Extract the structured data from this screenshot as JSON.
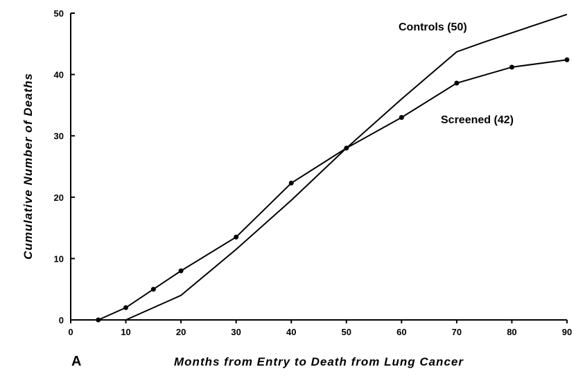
{
  "chart_data": {
    "type": "line",
    "panel_label": "A",
    "x_label": "Months from Entry to Death from Lung Cancer",
    "y_label": "Cumulative Number of Deaths",
    "xlim": [
      0,
      90
    ],
    "xticks": [
      0,
      10,
      20,
      30,
      40,
      50,
      60,
      70,
      80,
      90
    ],
    "ylim": [
      0,
      50
    ],
    "yticks": [
      0,
      10,
      20,
      30,
      40,
      50
    ],
    "series": [
      {
        "name": "Controls (50)",
        "color": "#000000",
        "markers": false,
        "x": [
          10,
          20,
          30,
          40,
          50,
          60,
          70,
          75,
          90
        ],
        "values": [
          0,
          4,
          11.5,
          19.5,
          28,
          36,
          43.7,
          45.3,
          49.8
        ]
      },
      {
        "name": "Screened (42)",
        "color": "#000000",
        "markers": true,
        "x": [
          5,
          10,
          15,
          20,
          30,
          40,
          50,
          60,
          70,
          80,
          90
        ],
        "values": [
          0,
          2,
          5,
          8,
          13.5,
          22.3,
          28,
          33,
          38.6,
          41.2,
          42.4
        ]
      }
    ]
  }
}
